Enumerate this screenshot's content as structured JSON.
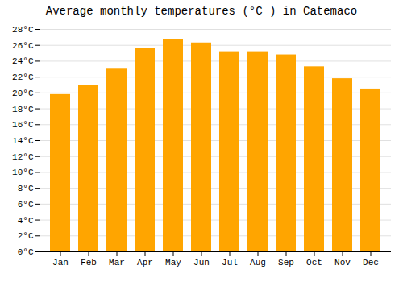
{
  "chart_data": {
    "type": "bar",
    "title": "Average monthly temperatures (°C ) in Catemaco",
    "categories": [
      "Jan",
      "Feb",
      "Mar",
      "Apr",
      "May",
      "Jun",
      "Jul",
      "Aug",
      "Sep",
      "Oct",
      "Nov",
      "Dec"
    ],
    "values": [
      19.8,
      21.0,
      23.0,
      25.6,
      26.7,
      26.3,
      25.2,
      25.2,
      24.8,
      23.3,
      21.8,
      20.5
    ],
    "color": "#FFA500",
    "ylim": [
      0,
      28
    ],
    "yticks": [
      {
        "value": 0,
        "label": "0°C"
      },
      {
        "value": 2,
        "label": "2°C"
      },
      {
        "value": 4,
        "label": "4°C"
      },
      {
        "value": 6,
        "label": "6°C"
      },
      {
        "value": 8,
        "label": "8°C"
      },
      {
        "value": 10,
        "label": "10°C"
      },
      {
        "value": 12,
        "label": "12°C"
      },
      {
        "value": 14,
        "label": "14°C"
      },
      {
        "value": 16,
        "label": "16°C"
      },
      {
        "value": 18,
        "label": "18°C"
      },
      {
        "value": 20,
        "label": "20°C"
      },
      {
        "value": 22,
        "label": "22°C"
      },
      {
        "value": 24,
        "label": "24°C"
      },
      {
        "value": 26,
        "label": "26°C"
      },
      {
        "value": 28,
        "label": "28°C"
      }
    ],
    "grid": true
  }
}
